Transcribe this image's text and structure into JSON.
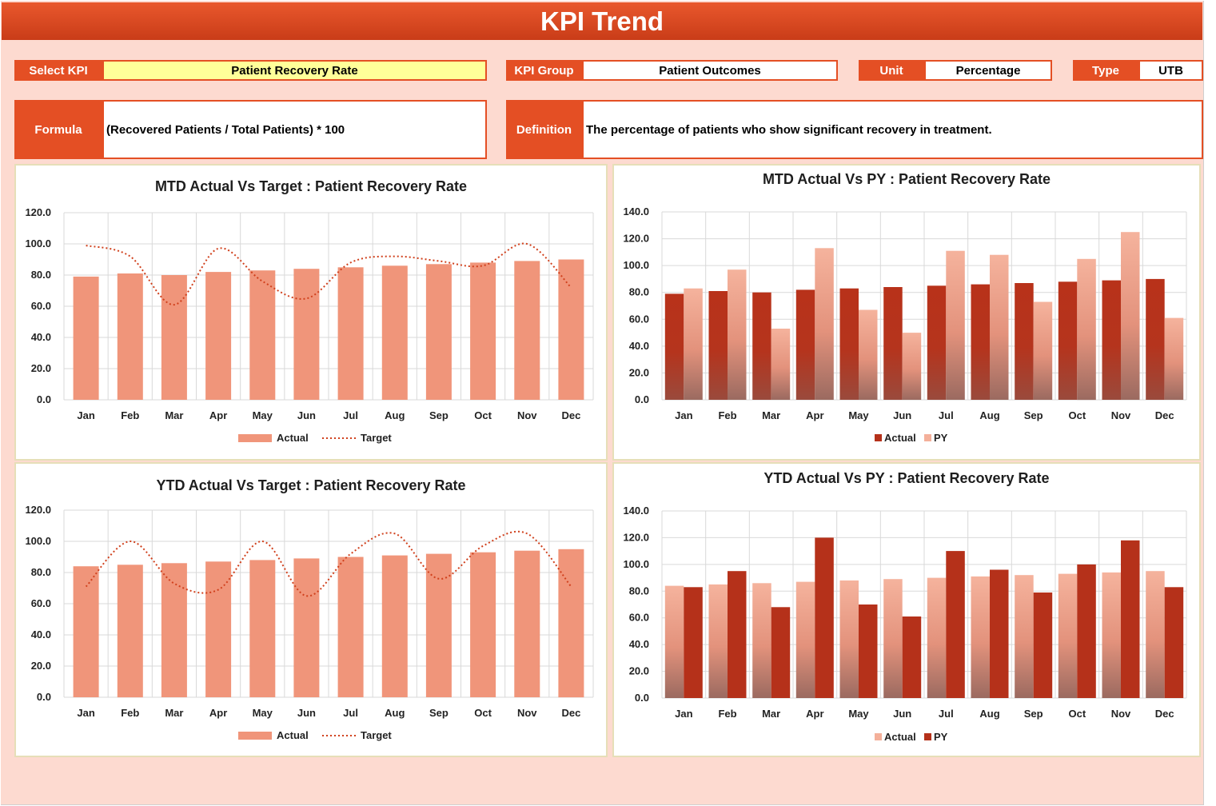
{
  "header": {
    "title": "KPI Trend"
  },
  "filters": {
    "select_kpi_label": "Select KPI",
    "select_kpi_value": "Patient Recovery Rate",
    "kpi_group_label": "KPI Group",
    "kpi_group_value": "Patient Outcomes",
    "unit_label": "Unit",
    "unit_value": "Percentage",
    "type_label": "Type",
    "type_value": "UTB"
  },
  "info": {
    "formula_label": "Formula",
    "formula_value": "(Recovered Patients / Total Patients) * 100",
    "definition_label": "Definition",
    "definition_value": "The percentage of patients who show significant recovery in treatment."
  },
  "colors": {
    "header": "#e44f24",
    "bar_light": "#f0957a",
    "bar_dark": "#b5311a",
    "py_light": "#f4b09a",
    "target_line": "#d0401c"
  },
  "chart_data": [
    {
      "type": "bar",
      "title": "MTD Actual Vs Target : Patient Recovery Rate",
      "categories": [
        "Jan",
        "Feb",
        "Mar",
        "Apr",
        "May",
        "Jun",
        "Jul",
        "Aug",
        "Sep",
        "Oct",
        "Nov",
        "Dec"
      ],
      "ylim": [
        0,
        120
      ],
      "yticks": [
        "0.0",
        "20.0",
        "40.0",
        "60.0",
        "80.0",
        "100.0",
        "120.0"
      ],
      "grid": true,
      "legend": "bottom",
      "series": [
        {
          "name": "Actual",
          "kind": "bar",
          "values": [
            79,
            81,
            80,
            82,
            83,
            84,
            85,
            86,
            87,
            88,
            89,
            90
          ]
        },
        {
          "name": "Target",
          "kind": "dotted-line",
          "values": [
            99,
            92,
            61,
            97,
            76,
            65,
            88,
            92,
            89,
            86,
            100,
            72
          ]
        }
      ]
    },
    {
      "type": "bar",
      "title": "MTD Actual Vs PY : Patient Recovery Rate",
      "categories": [
        "Jan",
        "Feb",
        "Mar",
        "Apr",
        "May",
        "Jun",
        "Jul",
        "Aug",
        "Sep",
        "Oct",
        "Nov",
        "Dec"
      ],
      "ylim": [
        0,
        140
      ],
      "yticks": [
        "0.0",
        "20.0",
        "40.0",
        "60.0",
        "80.0",
        "100.0",
        "120.0",
        "140.0"
      ],
      "grid": true,
      "legend": "bottom",
      "series": [
        {
          "name": "Actual",
          "kind": "bar",
          "values": [
            79,
            81,
            80,
            82,
            83,
            84,
            85,
            86,
            87,
            88,
            89,
            90
          ]
        },
        {
          "name": "PY",
          "kind": "bar",
          "values": [
            83,
            97,
            53,
            113,
            67,
            50,
            111,
            108,
            73,
            105,
            125,
            61
          ]
        }
      ]
    },
    {
      "type": "bar",
      "title": "YTD Actual Vs Target : Patient Recovery Rate",
      "categories": [
        "Jan",
        "Feb",
        "Mar",
        "Apr",
        "May",
        "Jun",
        "Jul",
        "Aug",
        "Sep",
        "Oct",
        "Nov",
        "Dec"
      ],
      "ylim": [
        0,
        120
      ],
      "yticks": [
        "0.0",
        "20.0",
        "40.0",
        "60.0",
        "80.0",
        "100.0",
        "120.0"
      ],
      "grid": true,
      "legend": "bottom",
      "series": [
        {
          "name": "Actual",
          "kind": "bar",
          "values": [
            84,
            85,
            86,
            87,
            88,
            89,
            90,
            91,
            92,
            93,
            94,
            95
          ]
        },
        {
          "name": "Target",
          "kind": "dotted-line",
          "values": [
            71,
            100,
            73,
            69,
            100,
            65,
            92,
            105,
            76,
            97,
            105,
            71
          ]
        }
      ]
    },
    {
      "type": "bar",
      "title": "YTD Actual Vs PY : Patient Recovery Rate",
      "categories": [
        "Jan",
        "Feb",
        "Mar",
        "Apr",
        "May",
        "Jun",
        "Jul",
        "Aug",
        "Sep",
        "Oct",
        "Nov",
        "Dec"
      ],
      "ylim": [
        0,
        140
      ],
      "yticks": [
        "0.0",
        "20.0",
        "40.0",
        "60.0",
        "80.0",
        "100.0",
        "120.0",
        "140.0"
      ],
      "grid": true,
      "legend": "bottom",
      "series": [
        {
          "name": "Actual",
          "kind": "bar",
          "values": [
            84,
            85,
            86,
            87,
            88,
            89,
            90,
            91,
            92,
            93,
            94,
            95
          ]
        },
        {
          "name": "PY",
          "kind": "bar",
          "values": [
            83,
            95,
            68,
            120,
            70,
            61,
            110,
            96,
            79,
            100,
            118,
            83
          ]
        }
      ]
    }
  ]
}
